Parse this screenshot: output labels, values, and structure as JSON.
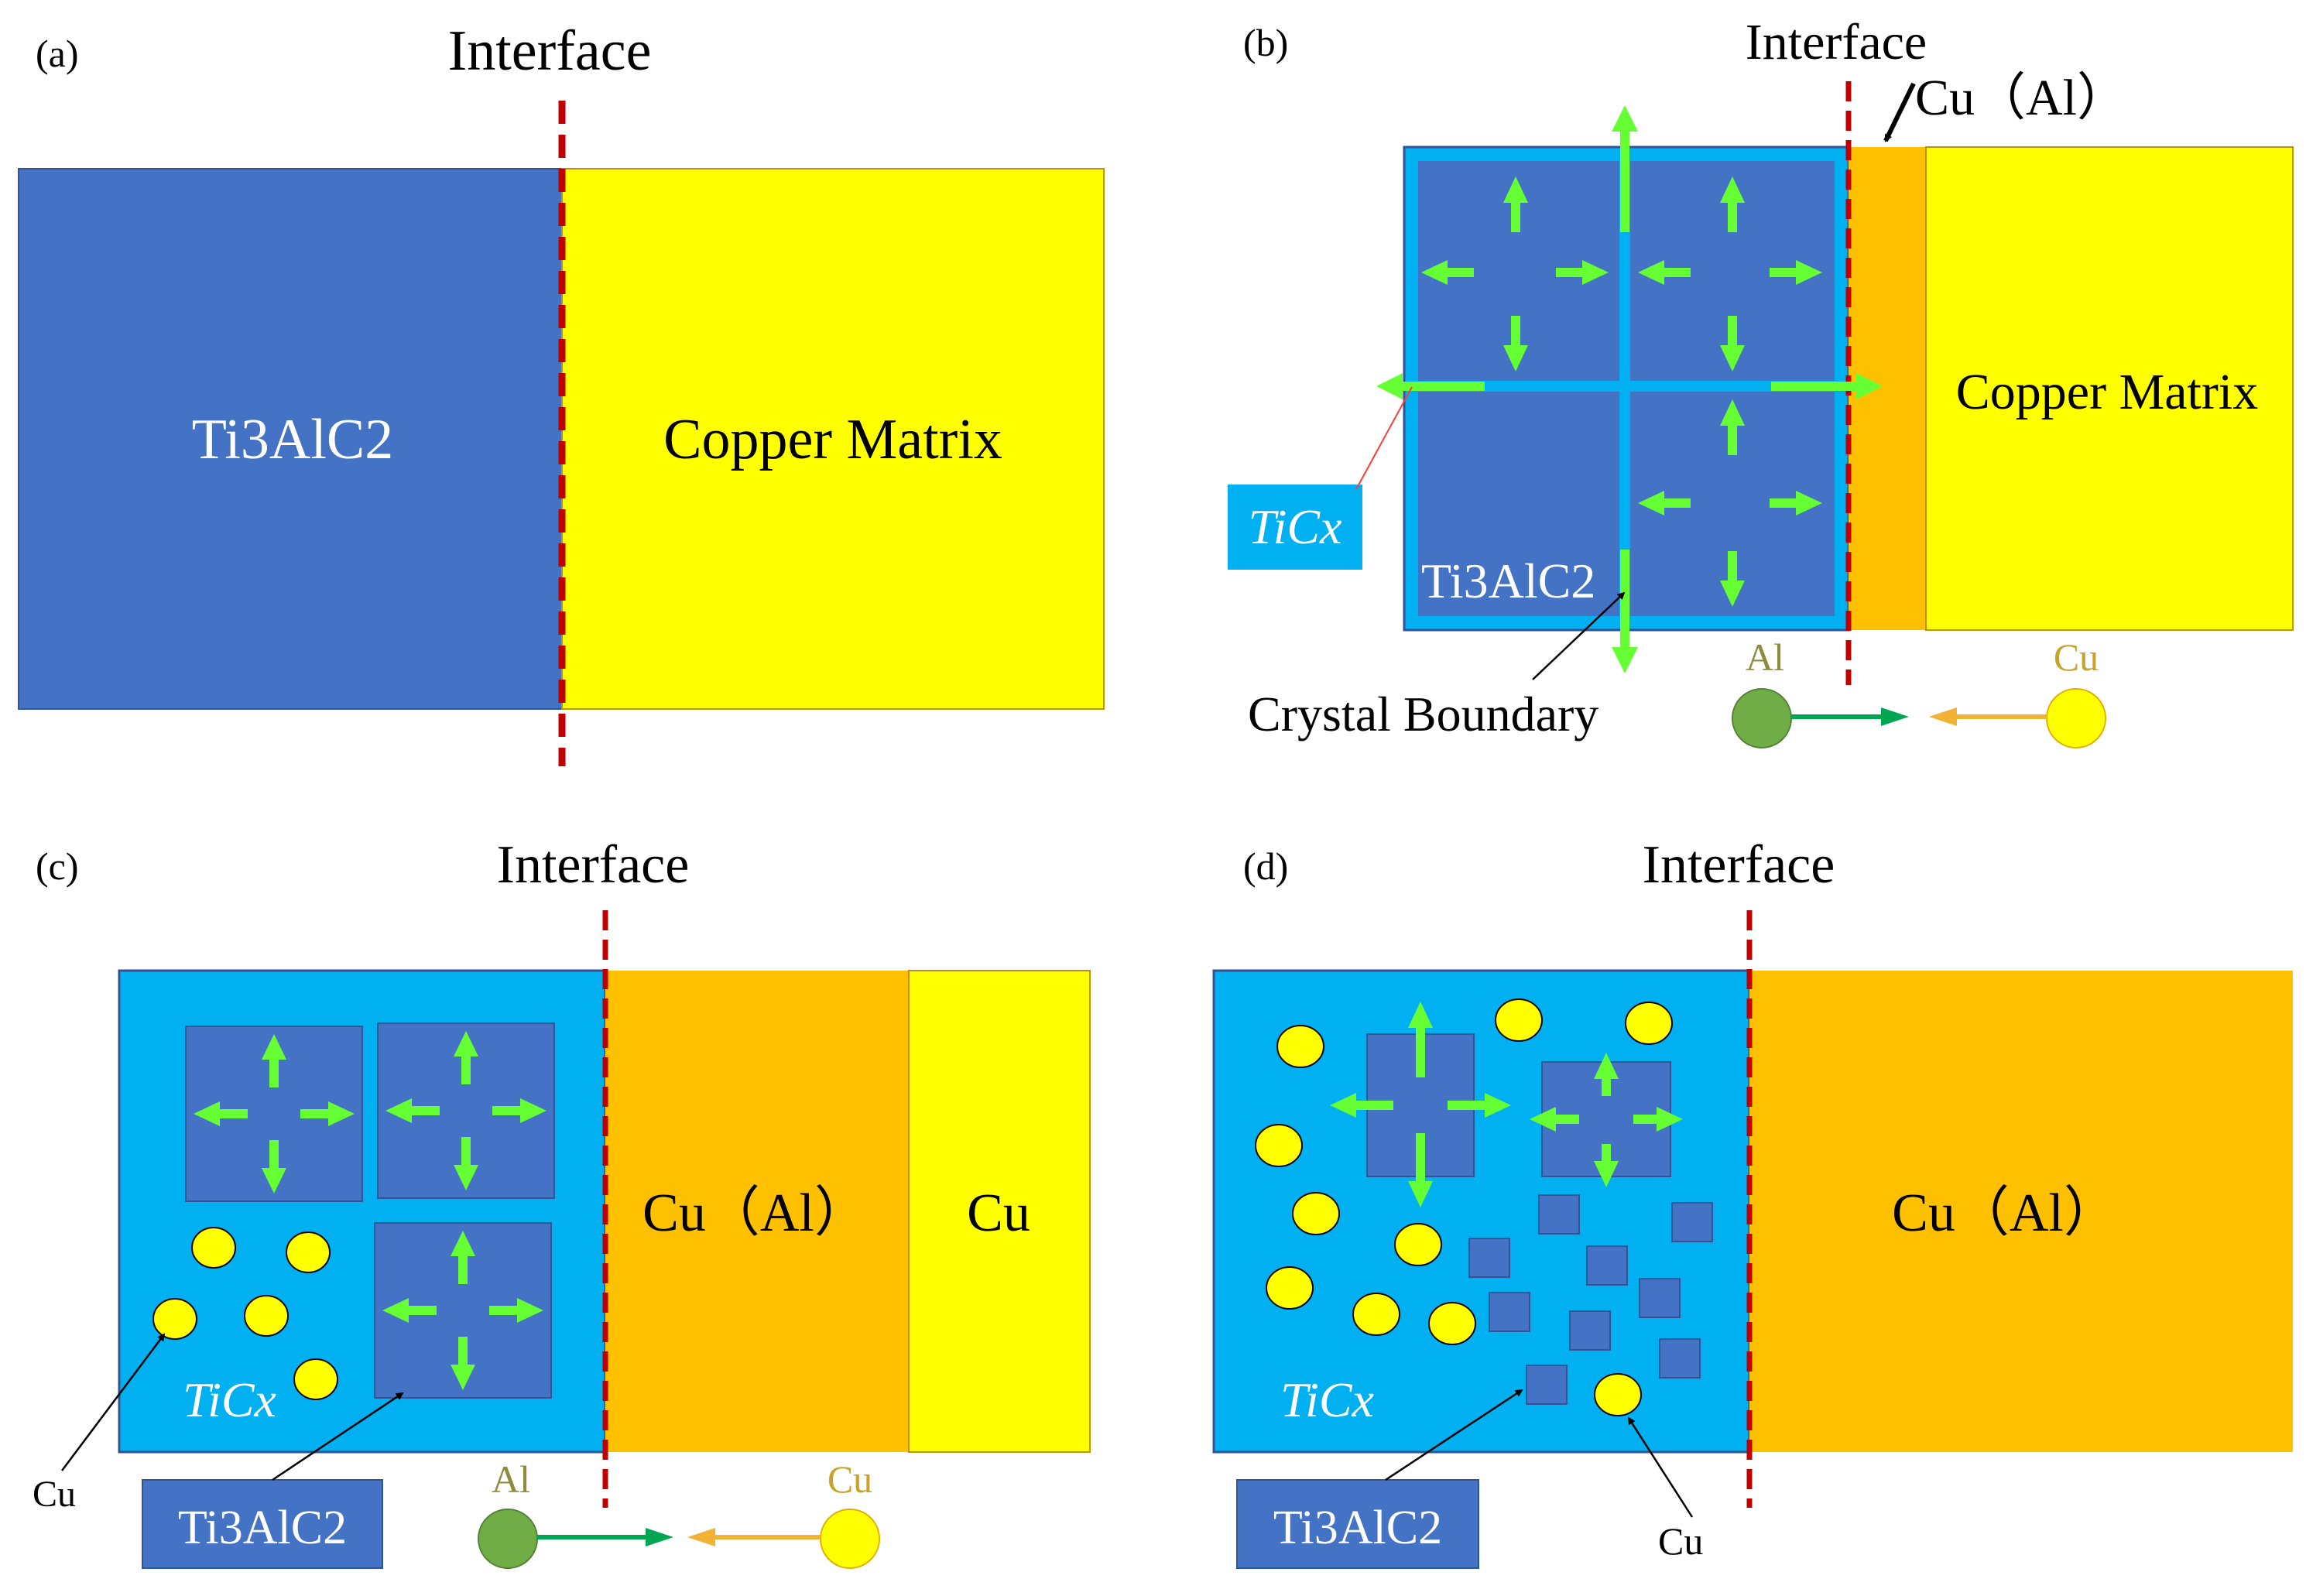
{
  "figure": {
    "colors": {
      "ti3alc2_blue": "#4472C4",
      "ticx_cyan": "#00B0F0",
      "copper_yellow": "#FFFF00",
      "cual_orange": "#FFC000",
      "arrow_green": "#66FF33",
      "interface_red": "#C00000",
      "al_green": "#70AD47",
      "al_arrow_green": "#00A651",
      "cu_arrow_gold": "#F2B233",
      "al_label": "#8C8C3C",
      "cu_label": "#C9A227"
    },
    "panel_a": {
      "tag": "(a)",
      "interface": "Interface",
      "left_block": "Ti3AlC2",
      "right_block": "Copper Matrix"
    },
    "panel_b": {
      "tag": "(b)",
      "interface": "Interface",
      "cual_label": "Cu（Al）",
      "copper": "Copper Matrix",
      "ticx_box": "TiCx",
      "ti3alc2": "Ti3AlC2",
      "crystal": "Crystal Boundary",
      "al": "Al",
      "cu": "Cu"
    },
    "panel_c": {
      "tag": "(c)",
      "interface": "Interface",
      "cual": "Cu（Al）",
      "cu_region": "Cu",
      "ticx": "TiCx",
      "cu_pointer": "Cu",
      "ti3alc2_box": "Ti3AlC2",
      "al": "Al",
      "cu": "Cu"
    },
    "panel_d": {
      "tag": "(d)",
      "interface": "Interface",
      "cual": "Cu（Al）",
      "ticx": "TiCx",
      "ti3alc2_box": "Ti3AlC2",
      "cu_pointer": "Cu"
    }
  }
}
